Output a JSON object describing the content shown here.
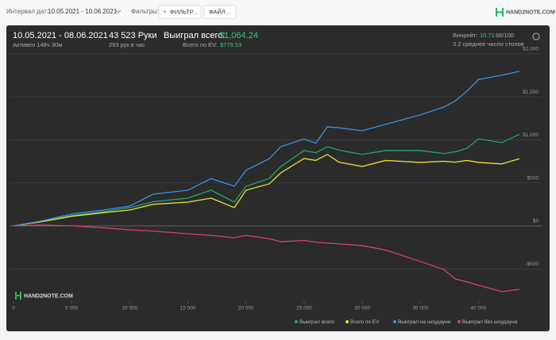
{
  "toolbar": {
    "date_label": "Интервал дат:",
    "date_range": "10.05.2021 - 10.06.2021",
    "filters_label": "Фильтры:",
    "filter_button": "ФИЛЬТР...",
    "file_button": "ФАЙЛ...",
    "logo": "HAND2NOTE.COM"
  },
  "summary": {
    "period": "10.05.2021 - 08.06.2021",
    "active": "Активен 148ч 30м",
    "hands": "43 523 Руки",
    "rate": "293 рук в час",
    "won_label": "Выиграл всего:",
    "won_value": "$1,064.24",
    "ev_label": "Всего по EV:",
    "ev_value": "$779.53",
    "winrate_label": "Винрейт:",
    "winrate_value": "10.71",
    "winrate_unit": "66/100",
    "tables": "3.2 среднее число столов"
  },
  "chart_data": {
    "type": "line",
    "watermark": "HAND2NOTE.COM",
    "x": [
      0,
      2500,
      5000,
      7500,
      10000,
      12000,
      15000,
      17000,
      19000,
      20000,
      22000,
      23000,
      25000,
      26000,
      27000,
      28000,
      30000,
      32000,
      35000,
      37000,
      38000,
      39000,
      40000,
      42000,
      43523
    ],
    "series": [
      {
        "name": "Выиграл всего",
        "color": "#1fa86a",
        "values": [
          0,
          55,
          120,
          160,
          212,
          280,
          322,
          414,
          276,
          460,
          550,
          690,
          875,
          850,
          920,
          880,
          830,
          875,
          875,
          840,
          860,
          900,
          1010,
          967,
          1064
        ]
      },
      {
        "name": "Всего по EV",
        "color": "#e8e337",
        "values": [
          0,
          50,
          110,
          150,
          184,
          250,
          276,
          322,
          212,
          414,
          488,
          617,
          783,
          760,
          830,
          740,
          690,
          760,
          737,
          750,
          740,
          760,
          737,
          720,
          780
        ]
      },
      {
        "name": "Выиграл на шоудауне",
        "color": "#3d8fe0",
        "values": [
          0,
          60,
          138,
          180,
          230,
          368,
          414,
          550,
          460,
          645,
          780,
          920,
          1010,
          960,
          1150,
          1140,
          1105,
          1180,
          1290,
          1380,
          1450,
          1565,
          1700,
          1750,
          1795
        ]
      },
      {
        "name": "Выиграл без шоудауна",
        "color": "#d9426b",
        "values": [
          0,
          10,
          0,
          -20,
          -46,
          -60,
          -92,
          -110,
          -138,
          -110,
          -150,
          -184,
          -170,
          -190,
          -200,
          -210,
          -230,
          -280,
          -414,
          -506,
          -617,
          -650,
          -690,
          -764,
          -737
        ]
      }
    ],
    "xlim": [
      0,
      44000
    ],
    "xticks": [
      0,
      {
        "value": 5000,
        "label": "5 000"
      },
      {
        "value": 10000,
        "label": "10 000"
      },
      {
        "value": 15000,
        "label": "15 000"
      },
      {
        "value": 20000,
        "label": "20 000"
      },
      {
        "value": 25000,
        "label": "25 000"
      },
      {
        "value": 30000,
        "label": "30 000"
      },
      {
        "value": 35000,
        "label": "35 000"
      },
      {
        "value": 40000,
        "label": "40 000"
      }
    ],
    "ylim": [
      -875,
      2090
    ],
    "yticks": [
      {
        "value": -500,
        "label": "-$500"
      },
      {
        "value": 0,
        "label": "$0"
      },
      {
        "value": 500,
        "label": "$500"
      },
      {
        "value": 1000,
        "label": "$1,000"
      },
      {
        "value": 1500,
        "label": "$1,500"
      },
      {
        "value": 2000,
        "label": "$2,000"
      }
    ],
    "grid": true
  }
}
